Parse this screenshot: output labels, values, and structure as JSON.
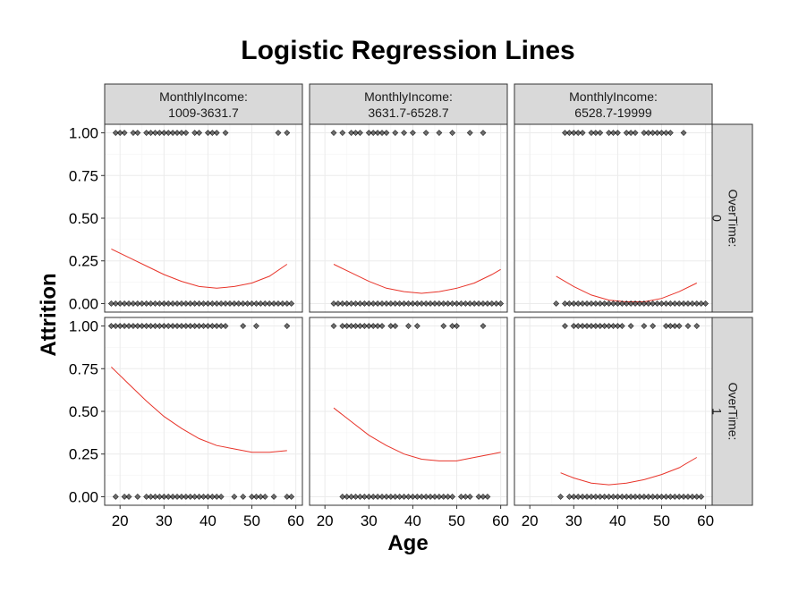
{
  "chart_data": {
    "type": "scatter",
    "title": "Logistic Regression Lines",
    "xlabel": "Age",
    "ylabel": "Attrition",
    "xlim": [
      16.5,
      61.5
    ],
    "ylim": [
      -0.05,
      1.05
    ],
    "x_ticks": [
      20,
      30,
      40,
      50,
      60
    ],
    "y_ticks": [
      0.0,
      0.25,
      0.5,
      0.75,
      1.0
    ],
    "y_tick_labels": [
      "0.00",
      "0.25",
      "0.50",
      "0.75",
      "1.00"
    ],
    "facet_cols": [
      {
        "var": "MonthlyIncome:",
        "value": "1009-3631.7"
      },
      {
        "var": "MonthlyIncome:",
        "value": "3631.7-6528.7"
      },
      {
        "var": "MonthlyIncome:",
        "value": "6528.7-19999"
      }
    ],
    "facet_rows": [
      {
        "var": "OverTime:",
        "value": "0"
      },
      {
        "var": "OverTime:",
        "value": "1"
      }
    ],
    "panels": [
      {
        "col": 0,
        "row": 0,
        "points_1": [
          19,
          20,
          21,
          23,
          24,
          26,
          27,
          28,
          29,
          30,
          31,
          32,
          33,
          34,
          35,
          37,
          38,
          40,
          41,
          42,
          44,
          56,
          58
        ],
        "points_0": [
          18,
          19,
          20,
          21,
          22,
          23,
          24,
          25,
          26,
          27,
          28,
          29,
          30,
          31,
          32,
          33,
          34,
          35,
          36,
          37,
          38,
          39,
          40,
          41,
          42,
          43,
          44,
          45,
          46,
          47,
          48,
          49,
          50,
          51,
          52,
          53,
          54,
          55,
          56,
          57,
          58,
          59
        ],
        "line_x": [
          18,
          22,
          26,
          30,
          34,
          38,
          42,
          46,
          50,
          54,
          58
        ],
        "line_y": [
          0.32,
          0.27,
          0.22,
          0.17,
          0.13,
          0.1,
          0.09,
          0.1,
          0.12,
          0.16,
          0.23
        ]
      },
      {
        "col": 1,
        "row": 0,
        "points_1": [
          22,
          24,
          26,
          27,
          28,
          30,
          31,
          32,
          33,
          34,
          36,
          38,
          40,
          43,
          46,
          49,
          53,
          56
        ],
        "points_0": [
          22,
          23,
          24,
          25,
          26,
          27,
          28,
          29,
          30,
          31,
          32,
          33,
          34,
          35,
          36,
          37,
          38,
          39,
          40,
          41,
          42,
          43,
          44,
          45,
          46,
          47,
          48,
          49,
          50,
          51,
          52,
          53,
          54,
          55,
          56,
          57,
          58,
          59,
          60
        ],
        "line_x": [
          22,
          26,
          30,
          34,
          38,
          42,
          46,
          50,
          54,
          58,
          60
        ],
        "line_y": [
          0.23,
          0.18,
          0.13,
          0.09,
          0.07,
          0.06,
          0.07,
          0.09,
          0.12,
          0.17,
          0.2
        ]
      },
      {
        "col": 2,
        "row": 0,
        "points_1": [
          28,
          29,
          30,
          31,
          32,
          34,
          35,
          36,
          38,
          39,
          40,
          42,
          43,
          44,
          46,
          47,
          48,
          49,
          50,
          51,
          52,
          55
        ],
        "points_0": [
          26,
          28,
          29,
          30,
          31,
          32,
          33,
          34,
          35,
          36,
          37,
          38,
          39,
          40,
          41,
          42,
          43,
          44,
          45,
          46,
          47,
          48,
          49,
          50,
          51,
          52,
          53,
          54,
          55,
          56,
          57,
          58,
          59,
          60
        ],
        "line_x": [
          26,
          30,
          34,
          38,
          42,
          46,
          50,
          54,
          58
        ],
        "line_y": [
          0.16,
          0.1,
          0.05,
          0.02,
          0.01,
          0.01,
          0.03,
          0.07,
          0.12
        ]
      },
      {
        "col": 0,
        "row": 1,
        "points_1": [
          18,
          19,
          20,
          21,
          22,
          23,
          24,
          25,
          26,
          27,
          28,
          29,
          30,
          31,
          32,
          33,
          34,
          35,
          36,
          37,
          38,
          39,
          40,
          41,
          42,
          43,
          44,
          48,
          51,
          58
        ],
        "points_0": [
          19,
          21,
          22,
          24,
          26,
          27,
          28,
          29,
          30,
          31,
          32,
          33,
          34,
          35,
          36,
          37,
          38,
          39,
          40,
          41,
          42,
          43,
          46,
          48,
          50,
          51,
          52,
          53,
          55,
          58,
          59
        ],
        "line_x": [
          18,
          22,
          26,
          30,
          34,
          38,
          42,
          46,
          50,
          54,
          58
        ],
        "line_y": [
          0.76,
          0.66,
          0.56,
          0.47,
          0.4,
          0.34,
          0.3,
          0.28,
          0.26,
          0.26,
          0.27
        ]
      },
      {
        "col": 1,
        "row": 1,
        "points_1": [
          22,
          24,
          25,
          26,
          27,
          28,
          29,
          30,
          31,
          32,
          33,
          35,
          36,
          39,
          41,
          47,
          49,
          50,
          56
        ],
        "points_0": [
          24,
          25,
          26,
          27,
          28,
          29,
          30,
          31,
          32,
          33,
          34,
          35,
          36,
          37,
          38,
          39,
          40,
          41,
          42,
          43,
          44,
          45,
          46,
          47,
          48,
          49,
          51,
          52,
          53,
          55,
          56,
          57
        ],
        "line_x": [
          22,
          26,
          30,
          34,
          38,
          42,
          46,
          50,
          54,
          58,
          60
        ],
        "line_y": [
          0.52,
          0.44,
          0.36,
          0.3,
          0.25,
          0.22,
          0.21,
          0.21,
          0.23,
          0.25,
          0.26
        ]
      },
      {
        "col": 2,
        "row": 1,
        "points_1": [
          28,
          30,
          31,
          32,
          33,
          34,
          35,
          36,
          37,
          38,
          39,
          40,
          41,
          43,
          46,
          48,
          51,
          52,
          53,
          54,
          56,
          58
        ],
        "points_0": [
          27,
          29,
          30,
          31,
          32,
          33,
          34,
          35,
          36,
          37,
          38,
          39,
          40,
          41,
          42,
          43,
          44,
          45,
          46,
          47,
          48,
          49,
          50,
          51,
          52,
          53,
          54,
          55,
          56,
          57,
          58,
          59
        ],
        "line_x": [
          27,
          30,
          34,
          38,
          42,
          46,
          50,
          54,
          58
        ],
        "line_y": [
          0.14,
          0.11,
          0.08,
          0.07,
          0.08,
          0.1,
          0.13,
          0.17,
          0.23
        ]
      }
    ]
  }
}
